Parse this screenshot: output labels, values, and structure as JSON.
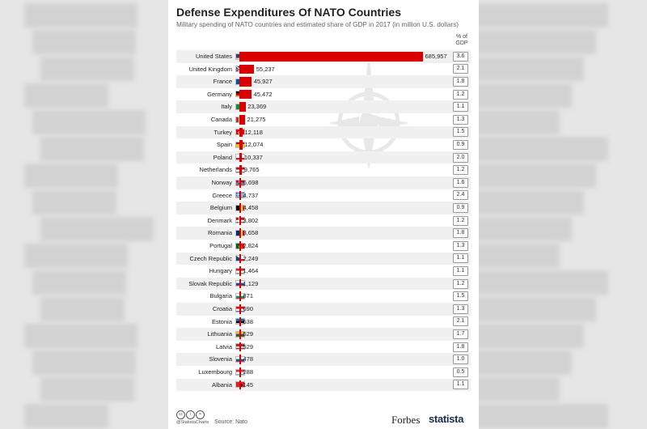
{
  "chart_data": {
    "type": "bar",
    "orientation": "horizontal",
    "title": "Defense Expenditures Of NATO Countries",
    "subtitle": "Military spending of NATO countries and estimated share of GDP in 2017 (in million U.S. dollars)",
    "gdp_header": "% of GDP",
    "categories": [
      "United States",
      "United Kingdom",
      "France",
      "Germany",
      "Italy",
      "Canada",
      "Turkey",
      "Spain",
      "Poland",
      "Netherlands",
      "Norway",
      "Greece",
      "Belgium",
      "Denmark",
      "Romania",
      "Portugal",
      "Czech Republic",
      "Hungary",
      "Slovak Republic",
      "Bulgaria",
      "Croatia",
      "Estonia",
      "Lithuania",
      "Latvia",
      "Slovenia",
      "Luxembourg",
      "Albania"
    ],
    "values": [
      685957,
      55237,
      45927,
      45472,
      23369,
      21275,
      12118,
      12074,
      10337,
      9765,
      6698,
      4737,
      4458,
      3802,
      3658,
      2824,
      2249,
      1464,
      1129,
      871,
      690,
      538,
      529,
      529,
      478,
      288,
      145
    ],
    "value_labels": [
      "685,957",
      "55,237",
      "45,927",
      "45,472",
      "23,369",
      "21,275",
      "12,118",
      "12,074",
      "10,337",
      "9,765",
      "6,698",
      "4,737",
      "4,458",
      "3,802",
      "3,658",
      "2,824",
      "2,249",
      "1,464",
      "1,129",
      "871",
      "690",
      "538",
      "529",
      "529",
      "478",
      "288",
      "145"
    ],
    "gdp_share": [
      "3.6",
      "2.1",
      "1.8",
      "1.2",
      "1.1",
      "1.3",
      "1.5",
      "0.9",
      "2.0",
      "1.2",
      "1.6",
      "2.4",
      "0.9",
      "1.2",
      "1.8",
      "1.3",
      "1.1",
      "1.1",
      "1.2",
      "1.5",
      "1.3",
      "2.1",
      "1.7",
      "1.8",
      "1.0",
      "0.5",
      "1.1"
    ],
    "flags": [
      {
        "type": "us"
      },
      {
        "type": "uk"
      },
      {
        "type": "v",
        "colors": [
          "#0055a4",
          "#ffffff",
          "#ef4135"
        ]
      },
      {
        "type": "h",
        "colors": [
          "#000000",
          "#dd0000",
          "#ffce00"
        ]
      },
      {
        "type": "v",
        "colors": [
          "#009246",
          "#ffffff",
          "#ce2b37"
        ]
      },
      {
        "type": "ca"
      },
      {
        "type": "tr"
      },
      {
        "type": "es"
      },
      {
        "type": "h",
        "colors": [
          "#ffffff",
          "#dc143c"
        ]
      },
      {
        "type": "h",
        "colors": [
          "#ae1c28",
          "#ffffff",
          "#21468b"
        ]
      },
      {
        "type": "nordic",
        "colors": [
          "#ba0c2f",
          "#ffffff",
          "#00205b"
        ]
      },
      {
        "type": "gr"
      },
      {
        "type": "v",
        "colors": [
          "#000000",
          "#fdda24",
          "#ef3340"
        ]
      },
      {
        "type": "nordic",
        "colors": [
          "#c8102e",
          "#ffffff",
          "#ffffff"
        ]
      },
      {
        "type": "v",
        "colors": [
          "#002b7f",
          "#fcd116",
          "#ce1126"
        ]
      },
      {
        "type": "pt"
      },
      {
        "type": "cz"
      },
      {
        "type": "h",
        "colors": [
          "#ce2939",
          "#ffffff",
          "#477050"
        ]
      },
      {
        "type": "h",
        "colors": [
          "#ffffff",
          "#0b4ea2",
          "#ee1c25"
        ]
      },
      {
        "type": "h",
        "colors": [
          "#ffffff",
          "#00966e",
          "#d62612"
        ]
      },
      {
        "type": "h",
        "colors": [
          "#ff0000",
          "#ffffff",
          "#171796"
        ]
      },
      {
        "type": "h",
        "colors": [
          "#0072ce",
          "#000000",
          "#ffffff"
        ]
      },
      {
        "type": "h",
        "colors": [
          "#fdb913",
          "#006a44",
          "#c1272d"
        ]
      },
      {
        "type": "lv"
      },
      {
        "type": "h",
        "colors": [
          "#ffffff",
          "#005da4",
          "#ed1c24"
        ]
      },
      {
        "type": "h",
        "colors": [
          "#ed2939",
          "#ffffff",
          "#00a1de"
        ]
      },
      {
        "type": "al"
      }
    ],
    "bar_color": "#d90000",
    "legend": "none",
    "grid": false
  },
  "footer": {
    "icons": [
      "cc-icon",
      "by-icon",
      "nd-icon"
    ],
    "handle": "@StatistaCharts",
    "source": "Source: Nato",
    "brand_forbes": "Forbes",
    "brand_statista": "statista"
  }
}
